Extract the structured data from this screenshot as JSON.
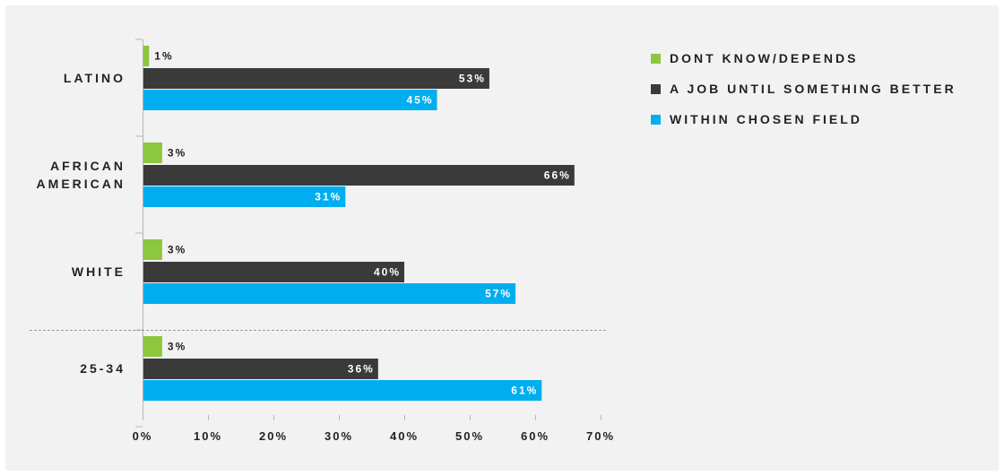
{
  "chart_data": {
    "type": "bar",
    "orientation": "horizontal",
    "categories": [
      [
        "LATINO"
      ],
      [
        "AFRICAN",
        "AMERICAN"
      ],
      [
        "WHITE"
      ],
      [
        "25-34"
      ]
    ],
    "series": [
      {
        "name": "DONT KNOW/DEPENDS",
        "color": "#8dc63f",
        "values": [
          1,
          3,
          3,
          3
        ],
        "labels": [
          "1%",
          "3%",
          "3%",
          "3%"
        ]
      },
      {
        "name": "A JOB UNTIL SOMETHING BETTER",
        "color": "#3a3a3a",
        "values": [
          53,
          66,
          40,
          36
        ],
        "labels": [
          "53%",
          "66%",
          "40%",
          "36%"
        ]
      },
      {
        "name": "WITHIN CHOSEN FIELD",
        "color": "#00aeef",
        "values": [
          45,
          31,
          57,
          61
        ],
        "labels": [
          "45%",
          "31%",
          "57%",
          "61%"
        ]
      }
    ],
    "xlim": [
      0,
      70
    ],
    "xticks": [
      0,
      10,
      20,
      30,
      40,
      50,
      60,
      70
    ],
    "xtick_labels": [
      "0%",
      "10%",
      "20%",
      "30%",
      "40%",
      "50%",
      "60%",
      "70%"
    ],
    "xlabel": "",
    "ylabel": "",
    "grid": false,
    "legend_position": "top-right",
    "separator_before_category": 3
  }
}
